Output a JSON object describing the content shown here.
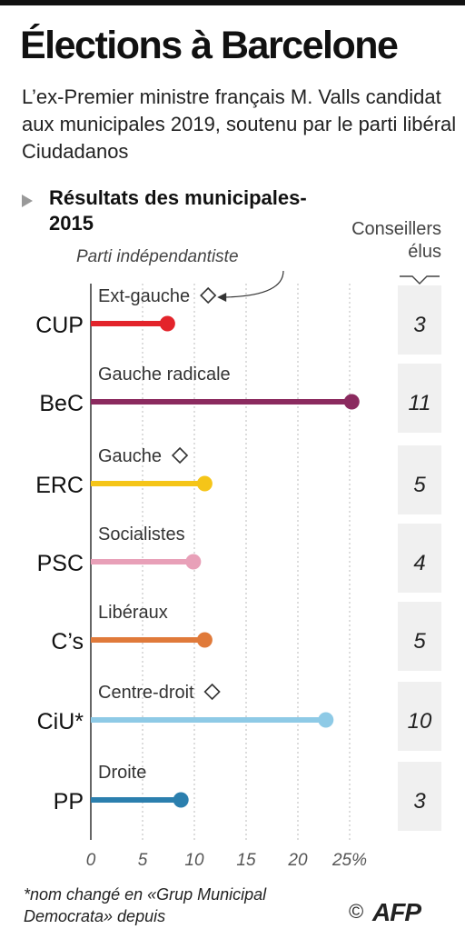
{
  "header": {
    "title": "Élections à Barcelone",
    "subtitle": "L’ex-Premier ministre français M. Valls candidat aux municipales 2019, soutenu par le parti libéral Ciudadanos",
    "section_title": "Résultats des municipales-2015"
  },
  "legend": {
    "independentist_label": "Parti indépendantiste",
    "independentist_marker": "diamond-icon"
  },
  "seats_header": "Conseillers élus",
  "chart_data": {
    "type": "bar",
    "title": "Résultats des municipales-2015",
    "xlabel": "",
    "ylabel": "",
    "x_unit": "%",
    "xlim": [
      0,
      25
    ],
    "ticks": [
      "0",
      "5",
      "10",
      "15",
      "20",
      "25%"
    ],
    "tick_values": [
      0,
      5,
      10,
      15,
      20,
      25
    ],
    "grid": true,
    "categories": [
      "CUP",
      "BeC",
      "ERC",
      "PSC",
      "C’s",
      "CiU*",
      "PP"
    ],
    "series": [
      {
        "values": [
          7.4,
          25.2,
          11.0,
          9.9,
          11.0,
          22.7,
          8.7
        ],
        "labels": [
          "Ext-gauche",
          "Gauche radicale",
          "Gauche",
          "Socialistes",
          "Libéraux",
          "Centre-droit",
          "Droite"
        ],
        "colors": [
          "#e3242b",
          "#8b2a5f",
          "#f5c518",
          "#e8a0b8",
          "#e07a3a",
          "#8ecae6",
          "#2b7fae"
        ],
        "independentist": [
          true,
          false,
          true,
          false,
          false,
          true,
          false
        ],
        "seats": [
          "3",
          "11",
          "5",
          "4",
          "5",
          "10",
          "3"
        ]
      }
    ]
  },
  "footnote": "*nom changé en «Grup Municipal Democrata» depuis",
  "credit": {
    "copyright": "©",
    "agency": "AFP"
  }
}
